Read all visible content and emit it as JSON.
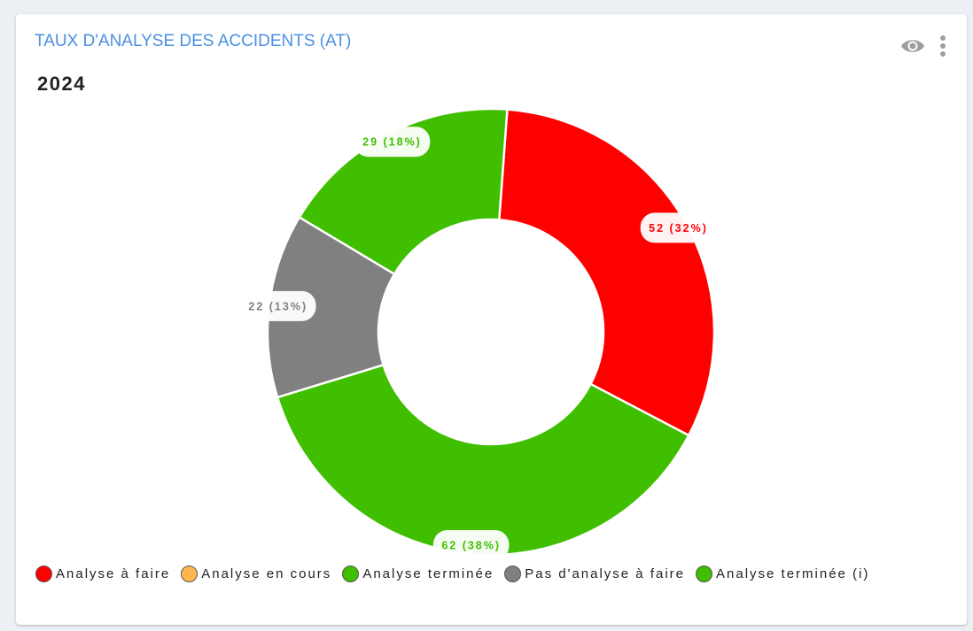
{
  "card": {
    "title": "TAUX D'ANALYSE DES ACCIDENTS (AT)",
    "subtitle": "2024",
    "icons": [
      "eye-icon",
      "more-vertical-icon"
    ]
  },
  "chart_data": {
    "type": "pie",
    "donut": true,
    "title": "2024",
    "slices": [
      {
        "name": "Analyse à faire",
        "value": 52,
        "label": "52 (32%)",
        "color": "#ff0000"
      },
      {
        "name": "Analyse terminée",
        "value": 62,
        "label": "62 (38%)",
        "color": "#3fbf00"
      },
      {
        "name": "Pas d'analyse à faire",
        "value": 22,
        "label": "22 (13%)",
        "color": "#808080"
      },
      {
        "name": "Analyse terminée (i)",
        "value": 29,
        "label": "29 (18%)",
        "color": "#3fbf00"
      }
    ],
    "legend": [
      {
        "label": "Analyse à faire",
        "color": "#ff0000"
      },
      {
        "label": "Analyse en cours",
        "color": "#ffb74d"
      },
      {
        "label": "Analyse terminée",
        "color": "#3fbf00"
      },
      {
        "label": "Pas d'analyse à faire",
        "color": "#808080"
      },
      {
        "label": "Analyse terminée (i)",
        "color": "#3fbf00"
      }
    ],
    "legend_position": "bottom"
  }
}
